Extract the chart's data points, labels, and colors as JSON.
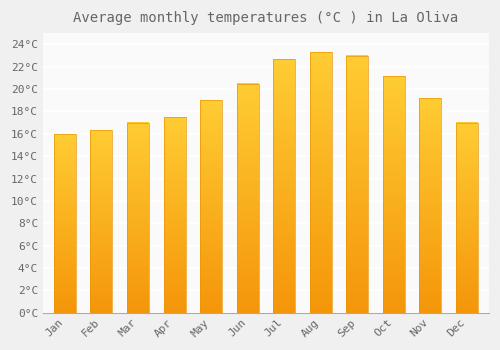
{
  "title": "Average monthly temperatures (°C ) in La Oliva",
  "months": [
    "Jan",
    "Feb",
    "Mar",
    "Apr",
    "May",
    "Jun",
    "Jul",
    "Aug",
    "Sep",
    "Oct",
    "Nov",
    "Dec"
  ],
  "values": [
    16.0,
    16.3,
    17.0,
    17.5,
    19.0,
    20.5,
    22.7,
    23.3,
    23.0,
    21.2,
    19.2,
    17.0
  ],
  "bar_color_top": "#FFCC33",
  "bar_color_bottom": "#F5960A",
  "bar_edge_color": "#E8960A",
  "background_color": "#F0F0F0",
  "plot_bg_color": "#FAFAFA",
  "grid_color": "#FFFFFF",
  "text_color": "#666666",
  "ylim": [
    0,
    25
  ],
  "ytick_step": 2,
  "title_fontsize": 10,
  "tick_fontsize": 8,
  "font_family": "monospace"
}
